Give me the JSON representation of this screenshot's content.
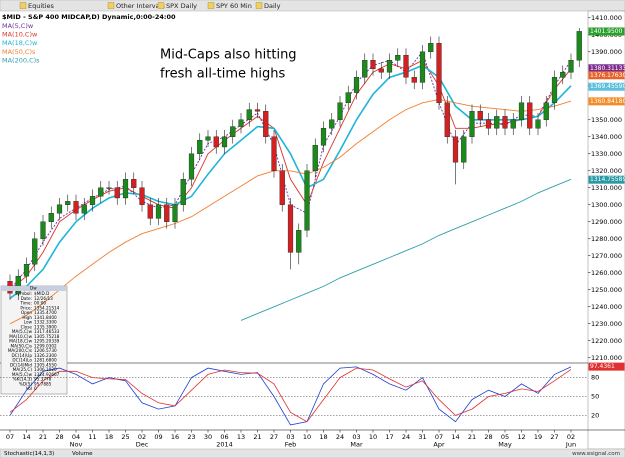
{
  "toolbar": [
    "Equities",
    "Other Intervals",
    "SPX Daily",
    "SPY 60 Min",
    "Daily"
  ],
  "annotation": [
    "Mid-Caps also hitting",
    "fresh all-time highs"
  ],
  "data_window": {
    "title": "Dw",
    "rows": [
      [
        "Symbol:",
        "$MID.D"
      ],
      [
        "Date:",
        "12/26/13"
      ],
      [
        "Time:",
        "00:00"
      ],
      [
        "Price:",
        "1354.21514"
      ],
      [
        "Open",
        "1335.4700"
      ],
      [
        "High",
        "1341.8400"
      ],
      [
        "Low",
        "1332.3300"
      ],
      [
        "Close",
        "1335.3900"
      ],
      [
        "MA(5,C)w",
        "1317.46533"
      ],
      [
        "MA(10,C)w",
        "1305.75218"
      ],
      [
        "MA(18,C)w",
        "1295.20339"
      ],
      [
        "MA(50,C)s",
        "1299.0302"
      ],
      [
        "MA(200,C)s",
        "1206.5730"
      ],
      [
        "DC(14)Up",
        "1326.2300"
      ],
      [
        "DC(14)Lo",
        "1281.6800"
      ],
      [
        "DC(14)Mid",
        "1305.4550"
      ],
      [
        "MA(25,C)",
        "1306.1020"
      ],
      [
        "MA(5,C)w",
        "1324.92667"
      ],
      [
        "%K(14,3)",
        "95.3778"
      ],
      [
        "%D(5)",
        "95.7885"
      ],
      [
        "Vol",
        "0"
      ]
    ]
  },
  "footer": {
    "tabs": [
      "Stochastic(14,1,3)",
      "Volume"
    ],
    "credit": "www.esignal.com"
  },
  "chart_data": [
    {
      "type": "candlestick",
      "title": "$MID - S&P 400 MIDCAP,D) Dynamic,0:00-24:00",
      "up_color": "#1a8a1a",
      "down_color": "#d42020",
      "open": [
        1255,
        1248,
        1258,
        1265,
        1280,
        1290,
        1295,
        1300,
        1302,
        1295,
        1300,
        1305,
        1310,
        1310,
        1304,
        1315,
        1310,
        1300,
        1292,
        1300,
        1290,
        1300,
        1315,
        1330,
        1338,
        1340,
        1334,
        1340,
        1346,
        1350,
        1356,
        1355,
        1340,
        1320,
        1300,
        1272,
        1285,
        1320,
        1335,
        1345,
        1350,
        1360,
        1366,
        1375,
        1385,
        1380,
        1378,
        1385,
        1388,
        1375,
        1372,
        1390,
        1395,
        1360,
        1340,
        1325,
        1340,
        1355,
        1350,
        1345,
        1352,
        1345,
        1350,
        1360,
        1345,
        1350,
        1360,
        1375,
        1378,
        1385
      ],
      "high": [
        1259,
        1262,
        1269,
        1284,
        1294,
        1299,
        1304,
        1306,
        1306,
        1304,
        1309,
        1314,
        1314,
        1314,
        1319,
        1319,
        1314,
        1304,
        1304,
        1304,
        1304,
        1319,
        1334,
        1342,
        1344,
        1344,
        1344,
        1350,
        1354,
        1360,
        1360,
        1359,
        1344,
        1324,
        1304,
        1289,
        1324,
        1339,
        1349,
        1354,
        1364,
        1370,
        1379,
        1389,
        1389,
        1384,
        1389,
        1392,
        1392,
        1379,
        1394,
        1399,
        1399,
        1364,
        1344,
        1344,
        1359,
        1359,
        1354,
        1356,
        1356,
        1354,
        1364,
        1364,
        1354,
        1364,
        1379,
        1382,
        1389,
        1404
      ],
      "low": [
        1244,
        1244,
        1254,
        1261,
        1276,
        1286,
        1291,
        1296,
        1291,
        1291,
        1296,
        1301,
        1306,
        1300,
        1300,
        1306,
        1296,
        1288,
        1288,
        1286,
        1286,
        1296,
        1311,
        1326,
        1334,
        1330,
        1330,
        1336,
        1342,
        1346,
        1351,
        1336,
        1316,
        1296,
        1262,
        1265,
        1281,
        1316,
        1331,
        1341,
        1346,
        1356,
        1362,
        1371,
        1376,
        1374,
        1374,
        1381,
        1371,
        1368,
        1368,
        1386,
        1356,
        1336,
        1312,
        1321,
        1336,
        1346,
        1341,
        1341,
        1341,
        1341,
        1346,
        1341,
        1341,
        1346,
        1356,
        1371,
        1374,
        1381
      ],
      "close": [
        1248,
        1258,
        1265,
        1280,
        1290,
        1295,
        1300,
        1302,
        1295,
        1300,
        1305,
        1310,
        1310,
        1304,
        1315,
        1310,
        1300,
        1292,
        1300,
        1290,
        1300,
        1315,
        1330,
        1338,
        1340,
        1334,
        1340,
        1346,
        1350,
        1356,
        1355,
        1340,
        1320,
        1300,
        1272,
        1285,
        1320,
        1335,
        1345,
        1350,
        1360,
        1366,
        1375,
        1385,
        1380,
        1378,
        1385,
        1388,
        1375,
        1372,
        1390,
        1395,
        1360,
        1340,
        1325,
        1340,
        1355,
        1350,
        1345,
        1352,
        1345,
        1350,
        1360,
        1345,
        1350,
        1360,
        1375,
        1378,
        1385,
        1402
      ],
      "ma_series": [
        {
          "name": "MA(5,C)w",
          "color": "#7030a0",
          "dash": true,
          "values": [
            1250,
            1262,
            1278,
            1292,
            1298,
            1304,
            1309,
            1311,
            1302,
            1298,
            1300,
            1318,
            1336,
            1340,
            1347,
            1354,
            1335,
            1300,
            1295,
            1335,
            1352,
            1372,
            1382,
            1385,
            1378,
            1390,
            1360,
            1335,
            1348,
            1348,
            1347,
            1353,
            1352,
            1370,
            1385
          ]
        },
        {
          "name": "MA(10,C)w",
          "color": "#d9342b",
          "dash": false,
          "values": [
            1250,
            1258,
            1272,
            1290,
            1297,
            1303,
            1308,
            1310,
            1305,
            1300,
            1298,
            1310,
            1330,
            1338,
            1345,
            1352,
            1345,
            1315,
            1300,
            1325,
            1345,
            1365,
            1378,
            1383,
            1380,
            1385,
            1370,
            1345,
            1345,
            1347,
            1348,
            1350,
            1352,
            1368,
            1380
          ]
        },
        {
          "name": "MA(18,C)w",
          "color": "#1fb4d8",
          "dash": false,
          "values": [
            1245,
            1252,
            1262,
            1278,
            1290,
            1298,
            1304,
            1307,
            1306,
            1302,
            1300,
            1305,
            1318,
            1330,
            1338,
            1346,
            1345,
            1330,
            1310,
            1315,
            1332,
            1350,
            1365,
            1375,
            1378,
            1382,
            1375,
            1358,
            1350,
            1350,
            1350,
            1350,
            1352,
            1360,
            1370
          ]
        },
        {
          "name": "MA(50,C)s",
          "color": "#f07f30",
          "dash": false,
          "values": [
            1230,
            1235,
            1242,
            1250,
            1258,
            1265,
            1272,
            1278,
            1283,
            1286,
            1289,
            1293,
            1299,
            1305,
            1311,
            1317,
            1320,
            1320,
            1318,
            1322,
            1328,
            1336,
            1343,
            1350,
            1356,
            1360,
            1362,
            1360,
            1358,
            1357,
            1356,
            1355,
            1356,
            1358,
            1361
          ]
        },
        {
          "name": "MA(200,C)s",
          "color": "#2f9fa8",
          "dash": false,
          "values": [
            null,
            null,
            null,
            null,
            null,
            null,
            null,
            null,
            null,
            null,
            null,
            null,
            null,
            null,
            1232,
            1236,
            1240,
            1244,
            1248,
            1252,
            1257,
            1261,
            1265,
            1269,
            1273,
            1277,
            1282,
            1286,
            1290,
            1294,
            1298,
            1302,
            1307,
            1311,
            1315
          ]
        }
      ],
      "ylim": [
        1207.5,
        1414
      ],
      "yticks": [
        {
          "value": 1210,
          "label": "1210.000"
        },
        {
          "value": 1220,
          "label": "1220.000"
        },
        {
          "value": 1230,
          "label": "1230.000"
        },
        {
          "value": 1240,
          "label": "1240.000"
        },
        {
          "value": 1250,
          "label": "1250.000"
        },
        {
          "value": 1260,
          "label": "1260.000"
        },
        {
          "value": 1270,
          "label": "1270.000"
        },
        {
          "value": 1280,
          "label": "1280.000"
        },
        {
          "value": 1290,
          "label": "1290.000"
        },
        {
          "value": 1300,
          "label": "1300.000"
        },
        {
          "value": 1310,
          "label": "1310.000"
        },
        {
          "value": 1320,
          "label": "1320.000"
        },
        {
          "value": 1330,
          "label": "1330.000"
        },
        {
          "value": 1340,
          "label": "1340.000"
        },
        {
          "value": 1350,
          "label": "1350.000"
        },
        {
          "value": 1370,
          "label": "1370.000"
        },
        {
          "value": 1390,
          "label": "1390.000"
        },
        {
          "value": 1400,
          "label": "1400.000"
        },
        {
          "value": 1410,
          "label": "1410.000"
        }
      ],
      "tags": [
        {
          "value": 1401.95,
          "label": "1401.9500",
          "color": "#2ca02c"
        },
        {
          "value": 1380.31133,
          "label": "1380.31133",
          "color": "#7b2d8e"
        },
        {
          "value": 1376.1763,
          "label": "1376.17630",
          "color": "#e8632b"
        },
        {
          "value": 1369.4559,
          "label": "1369.45590",
          "color": "#5bc0de"
        },
        {
          "value": 1360.8418,
          "label": "1360.84180",
          "color": "#f28c28"
        },
        {
          "value": 1314.75589,
          "label": "1314.75589",
          "color": "#2a9aa6"
        }
      ]
    },
    {
      "type": "line",
      "categories": [
        "07",
        "14",
        "21",
        "28",
        "04",
        "11",
        "18",
        "25",
        "02",
        "09",
        "16",
        "23",
        "30",
        "06",
        "13",
        "21",
        "27",
        "03",
        "10",
        "18",
        "24",
        "03",
        "10",
        "17",
        "24",
        "31",
        "07",
        "14",
        "21",
        "28",
        "05",
        "12",
        "19",
        "27",
        "02"
      ],
      "month_labels": [
        null,
        null,
        null,
        null,
        "Nov",
        null,
        null,
        null,
        "Dec",
        null,
        null,
        null,
        null,
        "2014",
        null,
        null,
        null,
        "Feb",
        null,
        null,
        null,
        "Mar",
        null,
        null,
        null,
        null,
        "Apr",
        null,
        null,
        null,
        "May",
        null,
        null,
        null,
        "Jun"
      ],
      "series": [
        {
          "color": "#1f3fd1",
          "values": [
            20,
            60,
            90,
            95,
            85,
            70,
            80,
            75,
            40,
            30,
            35,
            80,
            95,
            90,
            85,
            88,
            50,
            5,
            10,
            70,
            95,
            97,
            85,
            70,
            60,
            80,
            30,
            10,
            45,
            60,
            50,
            70,
            55,
            85,
            97
          ]
        },
        {
          "color": "#e03030",
          "values": [
            25,
            45,
            75,
            90,
            90,
            80,
            78,
            77,
            55,
            40,
            35,
            60,
            85,
            92,
            88,
            87,
            70,
            25,
            10,
            45,
            80,
            95,
            92,
            78,
            65,
            75,
            45,
            20,
            30,
            50,
            55,
            62,
            58,
            75,
            93
          ]
        }
      ],
      "ylim": [
        0,
        100
      ],
      "yticks": [
        20,
        50,
        80
      ],
      "grid": true,
      "tags": [
        {
          "value": 97.4361,
          "label": "97.4361",
          "color": "#e03030"
        }
      ]
    }
  ]
}
